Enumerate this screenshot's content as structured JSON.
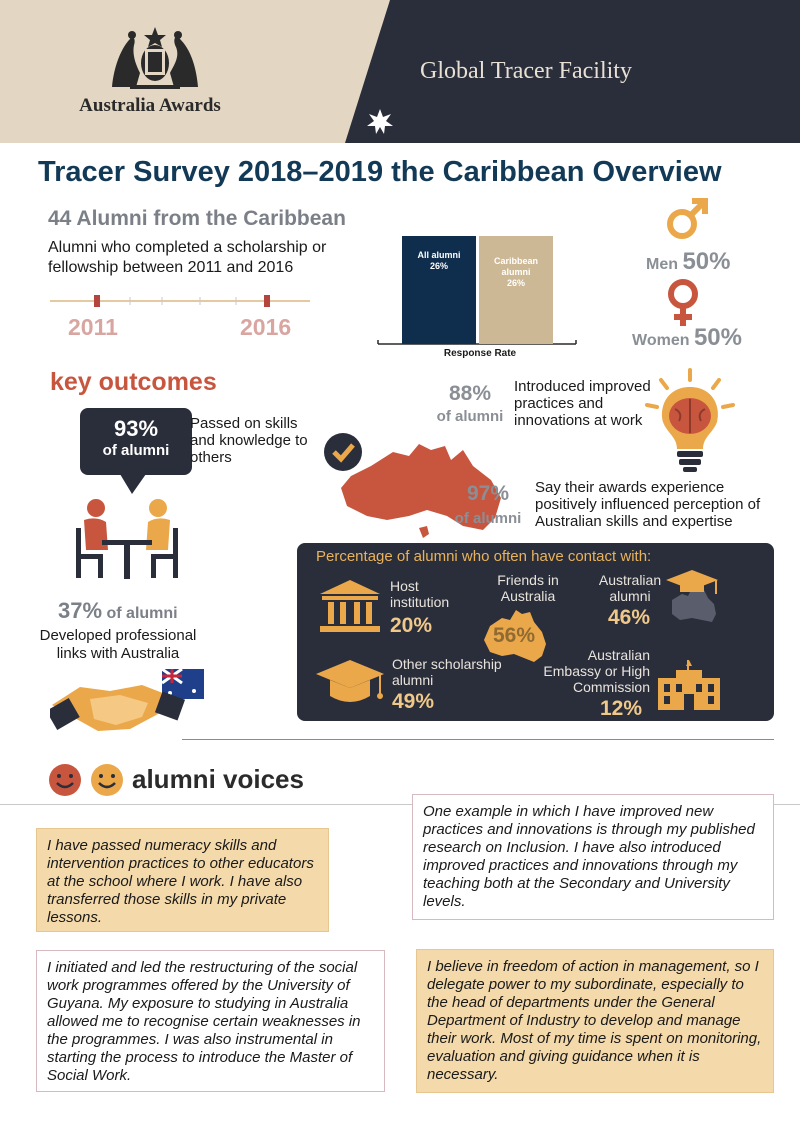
{
  "header": {
    "brand": "Australia Awards",
    "facility": "Global Tracer Facility"
  },
  "title": "Tracer Survey 2018–2019 the Caribbean Overview",
  "intro": {
    "alumni_count": "44 Alumni from the Caribbean",
    "description": "Alumni who completed a scholarship or fellowship between 2011 and 2016",
    "year_start": "2011",
    "year_end": "2016"
  },
  "chart_data": {
    "type": "bar",
    "categories": [
      "All alumni",
      "Caribbean alumni"
    ],
    "values": [
      26,
      26
    ],
    "value_labels": [
      "26%",
      "26%"
    ],
    "xlabel": "Response Rate",
    "colors": [
      "#0f2d4d",
      "#cdb896"
    ]
  },
  "gender": {
    "men_label": "Men",
    "men_pct": "50%",
    "women_label": "Women",
    "women_pct": "50%"
  },
  "key_outcomes": {
    "title": "key outcomes",
    "skills_pct": "93%",
    "skills_of": "of alumni",
    "skills_text": "Passed on skills and knowledge to others",
    "innov_pct": "88%",
    "innov_of": "of alumni",
    "innov_text": "Introduced improved practices and innovations at work",
    "percep_pct": "97%",
    "percep_of": "of alumni",
    "percep_text": "Say their awards experience positively influenced perception of Australian skills and expertise",
    "links_pct": "37%",
    "links_of": "of alumni",
    "links_text": "Developed professional links with Australia"
  },
  "contact": {
    "title": "Percentage of alumni who often have contact with:",
    "host_label": "Host institution",
    "host_value": "20%",
    "friends_label": "Friends in Australia",
    "friends_value": "56%",
    "aus_alumni_label": "Australian alumni",
    "aus_alumni_value": "46%",
    "other_label": "Other scholarship alumni",
    "other_value": "49%",
    "embassy_label": "Australian Embassy or High Commission",
    "embassy_value": "12%"
  },
  "voices": {
    "title": "alumni voices",
    "q1": "I have passed numeracy skills and intervention practices to other educators at the school where I work. I have also transferred those skills in my private lessons.",
    "q2": "One example in which I have improved new practices and innovations is through my published research on Inclusion. I have also introduced improved practices and innovations through my teaching both at the Secondary and University levels.",
    "q3": "I initiated and led the restructuring of the social work programmes offered by the University of Guyana. My exposure to studying in Australia allowed me to recognise certain weaknesses in the programmes. I was also instrumental in starting the process to introduce the Master of Social Work.",
    "q4": "I believe in freedom of action in management, so I delegate power to my subordinate, especially to the head of departments under the General Department of Industry to develop and manage their work. Most of my time is spent on monitoring, evaluation and giving guidance when it is necessary."
  }
}
